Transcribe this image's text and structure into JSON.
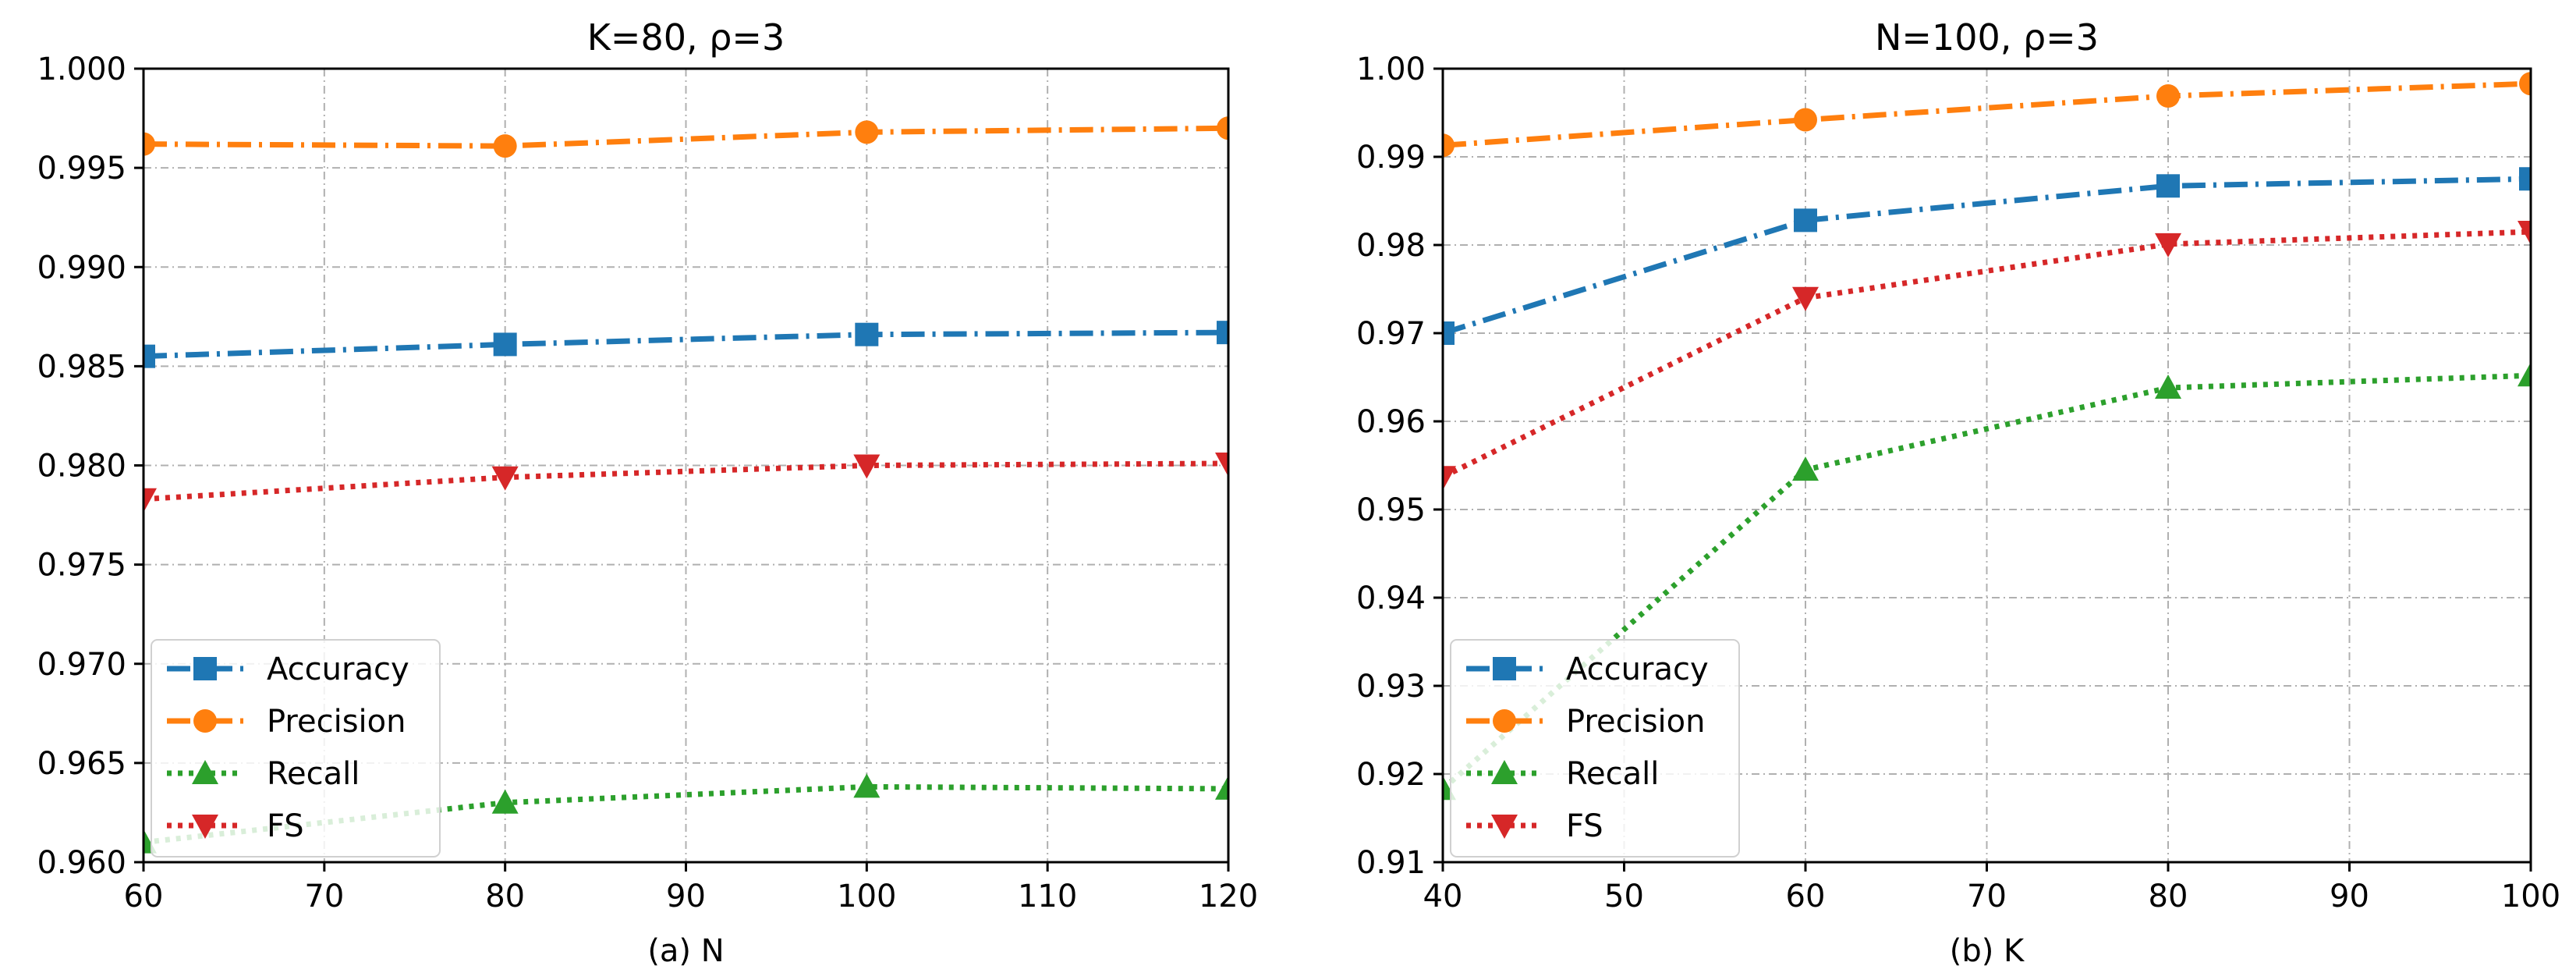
{
  "chart_data": [
    {
      "type": "line",
      "title": "K=80, ρ=3",
      "xlabel": "(a) N",
      "ylabel": "",
      "xlim": [
        60,
        120
      ],
      "ylim": [
        0.96,
        1.0
      ],
      "xticks": [
        60,
        70,
        80,
        90,
        100,
        110,
        120
      ],
      "xtick_labels": [
        "60",
        "70",
        "80",
        "90",
        "100",
        "110",
        "120"
      ],
      "yticks": [
        0.96,
        0.965,
        0.97,
        0.975,
        0.98,
        0.985,
        0.99,
        0.995,
        1.0
      ],
      "ytick_labels": [
        "0.960",
        "0.965",
        "0.970",
        "0.975",
        "0.980",
        "0.985",
        "0.990",
        "0.995",
        "1.000"
      ],
      "grid": true,
      "legend_position": "lower-left",
      "x": [
        60,
        80,
        100,
        120
      ],
      "series": [
        {
          "name": "Accuracy",
          "values": [
            0.9855,
            0.9861,
            0.9866,
            0.9867
          ],
          "color": "#1f77b4",
          "marker": "square",
          "dash": "dashdot"
        },
        {
          "name": "Precision",
          "values": [
            0.9962,
            0.9961,
            0.9968,
            0.997
          ],
          "color": "#ff7f0e",
          "marker": "circle",
          "dash": "dashdot"
        },
        {
          "name": "Recall",
          "values": [
            0.961,
            0.963,
            0.9638,
            0.9637
          ],
          "color": "#2ca02c",
          "marker": "triangle-up",
          "dash": "dotted"
        },
        {
          "name": "FS",
          "values": [
            0.9783,
            0.9794,
            0.98,
            0.9801
          ],
          "color": "#d62728",
          "marker": "triangle-down",
          "dash": "dotted"
        }
      ]
    },
    {
      "type": "line",
      "title": "N=100, ρ=3",
      "xlabel": "(b) K",
      "ylabel": "",
      "xlim": [
        40,
        100
      ],
      "ylim": [
        0.91,
        1.0
      ],
      "xticks": [
        40,
        50,
        60,
        70,
        80,
        90,
        100
      ],
      "xtick_labels": [
        "40",
        "50",
        "60",
        "70",
        "80",
        "90",
        "100"
      ],
      "yticks": [
        0.91,
        0.92,
        0.93,
        0.94,
        0.95,
        0.96,
        0.97,
        0.98,
        0.99,
        1.0
      ],
      "ytick_labels": [
        "0.91",
        "0.92",
        "0.93",
        "0.94",
        "0.95",
        "0.96",
        "0.97",
        "0.98",
        "0.99",
        "1.00"
      ],
      "grid": true,
      "legend_position": "lower-left",
      "x": [
        40,
        60,
        80,
        100
      ],
      "series": [
        {
          "name": "Accuracy",
          "values": [
            0.97,
            0.9828,
            0.9867,
            0.9875
          ],
          "color": "#1f77b4",
          "marker": "square",
          "dash": "dashdot"
        },
        {
          "name": "Precision",
          "values": [
            0.9913,
            0.9942,
            0.9969,
            0.9983
          ],
          "color": "#ff7f0e",
          "marker": "circle",
          "dash": "dashdot"
        },
        {
          "name": "Recall",
          "values": [
            0.9183,
            0.9545,
            0.9638,
            0.9652
          ],
          "color": "#2ca02c",
          "marker": "triangle-up",
          "dash": "dotted"
        },
        {
          "name": "FS",
          "values": [
            0.9537,
            0.974,
            0.9801,
            0.9815
          ],
          "color": "#d62728",
          "marker": "triangle-down",
          "dash": "dotted"
        }
      ]
    }
  ]
}
